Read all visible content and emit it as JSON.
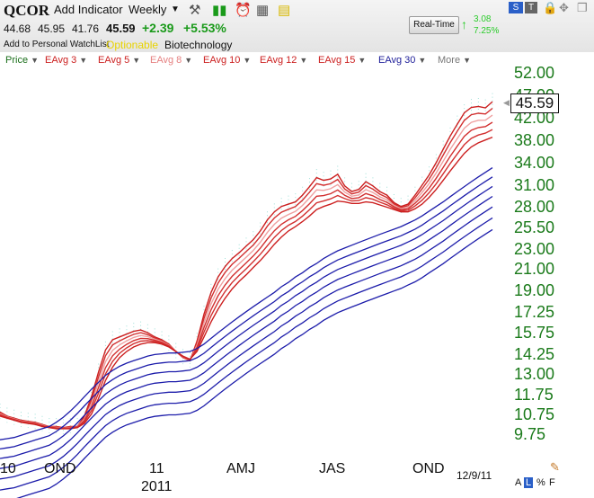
{
  "ticker": "QCOR",
  "toolbar": {
    "add_indicator": "Add Indicator",
    "period": "Weekly"
  },
  "quote": {
    "open": "44.68",
    "high": "45.95",
    "low": "41.76",
    "last": "45.59",
    "change": "+2.39",
    "change_pct": "+5.53%"
  },
  "watchlist_link": "Add to Personal WatchList",
  "optionable": "Optionable",
  "industry": "Biotechnology",
  "realtime": {
    "button": "Real-Time",
    "change": "3.08",
    "change_pct": "7.25%"
  },
  "window_buttons": {
    "s": "S",
    "t": "T"
  },
  "legend": [
    {
      "label": "Price",
      "color": "#1a6e1a"
    },
    {
      "label": "EAvg 3",
      "color": "#cc2020"
    },
    {
      "label": "EAvg 5",
      "color": "#cc2020"
    },
    {
      "label": "EAvg 8",
      "color": "#e58080"
    },
    {
      "label": "EAvg 10",
      "color": "#cc2020"
    },
    {
      "label": "EAvg 12",
      "color": "#cc2020"
    },
    {
      "label": "EAvg 15",
      "color": "#cc2020"
    },
    {
      "label": "EAvg 30",
      "color": "#20209a"
    },
    {
      "label": "More",
      "color": "#777777"
    }
  ],
  "y_axis": [
    "52.00",
    "47.00",
    "42.00",
    "38.00",
    "34.00",
    "31.00",
    "28.00",
    "25.50",
    "23.00",
    "21.00",
    "19.00",
    "17.25",
    "15.75",
    "14.25",
    "13.00",
    "11.75",
    "10.75",
    "9.75"
  ],
  "last_price_box": "45.59",
  "x_axis": [
    {
      "label": "10"
    },
    {
      "label": "OND"
    },
    {
      "label": "11"
    },
    {
      "label": "2011"
    },
    {
      "label": "AMJ"
    },
    {
      "label": "JAS"
    },
    {
      "label": "OND"
    }
  ],
  "date_label": "12/9/11",
  "scale_buttons": [
    "A",
    "L",
    "%",
    "F"
  ],
  "chart_data": {
    "type": "line",
    "x": [
      0,
      1,
      2,
      3,
      4,
      5,
      6,
      7,
      8,
      9,
      10,
      11,
      12,
      13,
      14,
      15,
      16,
      17,
      18,
      19,
      20,
      21,
      22,
      23,
      24,
      25,
      26,
      27,
      28,
      29,
      30,
      31,
      32,
      33,
      34,
      35,
      36,
      37,
      38,
      39,
      40,
      41,
      42,
      43,
      44,
      45,
      46,
      47,
      48,
      49,
      50,
      51,
      52,
      53,
      54,
      55,
      56,
      57,
      58,
      59,
      60,
      61,
      62,
      63,
      64,
      65,
      66,
      67,
      68,
      69,
      70
    ],
    "series": [
      {
        "name": "EAvg 3",
        "values": [
          10.8,
          10.6,
          10.5,
          10.4,
          10.35,
          10.3,
          10.2,
          10.1,
          10.1,
          10.05,
          10.1,
          10.1,
          10.6,
          11.6,
          13,
          14.4,
          15.1,
          15.3,
          15.5,
          15.7,
          15.8,
          15.6,
          15.3,
          15.1,
          14.8,
          14.3,
          13.9,
          13.7,
          15,
          17,
          18.8,
          20.2,
          21.2,
          22,
          22.6,
          23.3,
          24,
          25,
          26.3,
          27.3,
          28,
          28.3,
          28.6,
          29.5,
          30.7,
          32,
          31.6,
          31.8,
          32.5,
          30.8,
          30,
          30.3,
          31.4,
          30.8,
          30,
          29.5,
          28.5,
          28,
          28.3,
          29.5,
          30.9,
          32.4,
          34.3,
          36.5,
          38.8,
          41,
          43.2,
          44.3,
          44.5,
          44.2,
          45.5
        ]
      },
      {
        "name": "EAvg 15",
        "values": [
          10.6,
          10.5,
          10.4,
          10.3,
          10.25,
          10.2,
          10.1,
          10.05,
          10,
          10,
          10,
          10.05,
          10.25,
          10.7,
          11.5,
          12.5,
          13.3,
          13.9,
          14.3,
          14.6,
          14.8,
          14.9,
          14.9,
          14.8,
          14.6,
          14.3,
          14,
          13.8,
          14.3,
          15.3,
          16.4,
          17.4,
          18.3,
          19.1,
          19.8,
          20.4,
          21.1,
          21.8,
          22.6,
          23.5,
          24.3,
          25,
          25.5,
          26.1,
          26.8,
          27.6,
          28,
          28.3,
          28.7,
          28.6,
          28.4,
          28.4,
          28.6,
          28.5,
          28.2,
          27.9,
          27.6,
          27.3,
          27.3,
          27.7,
          28.3,
          29.2,
          30.3,
          31.6,
          33,
          34.4,
          35.8,
          36.9,
          37.6,
          38.1,
          38.6
        ]
      },
      {
        "name": "EAvg 30",
        "values": [
          9.5,
          9.55,
          9.6,
          9.7,
          9.8,
          9.9,
          10,
          10.1,
          10.3,
          10.55,
          10.85,
          11.2,
          11.6,
          12,
          12.4,
          12.8,
          13.1,
          13.35,
          13.55,
          13.7,
          13.85,
          14,
          14.1,
          14.15,
          14.2,
          14.2,
          14.25,
          14.3,
          14.5,
          14.8,
          15.2,
          15.6,
          16,
          16.4,
          16.8,
          17.2,
          17.6,
          18,
          18.4,
          18.8,
          19.3,
          19.7,
          20.2,
          20.6,
          21.1,
          21.5,
          22,
          22.4,
          22.8,
          23.1,
          23.4,
          23.7,
          24,
          24.3,
          24.6,
          24.9,
          25.2,
          25.5,
          25.9,
          26.3,
          26.8,
          27.4,
          28,
          28.6,
          29.3,
          30,
          30.7,
          31.4,
          32.1,
          32.8,
          33.5
        ]
      }
    ],
    "ylim": [
      9.2,
      54
    ],
    "y_scale": "log",
    "grid": false
  }
}
